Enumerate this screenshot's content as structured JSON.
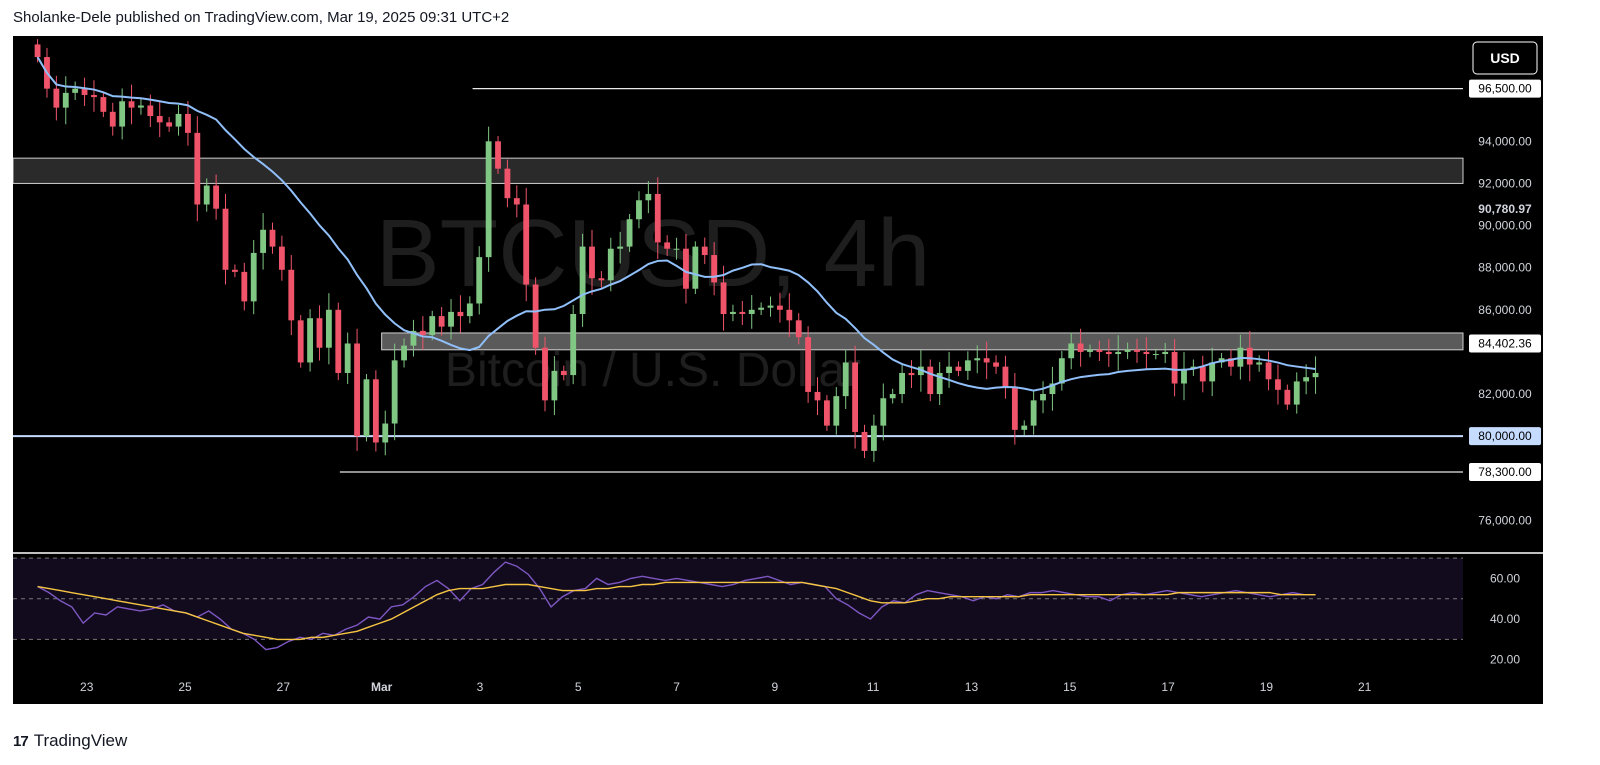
{
  "header": {
    "publisher_line": "Sholanke-Dele published on TradingView.com, Mar 19, 2025 09:31 UTC+2"
  },
  "footer": {
    "logo_text": "17",
    "brand": "TradingView"
  },
  "currency_button": "USD",
  "watermark": {
    "symbol": "BTCUSD, 4h",
    "description": "Bitcoin / U.S. Dollar"
  },
  "colors": {
    "up": "#81c784",
    "down": "#f0546a",
    "ma": "#90bff9",
    "rsi": "#7e57c2",
    "rsi_ma": "#f5c542",
    "background": "#000000"
  },
  "chart_data": [
    {
      "type": "candlestick",
      "symbol": "BTCUSD",
      "timeframe": "4h",
      "y_range": [
        74500,
        99000
      ],
      "y_ticks": [
        "76,000.00",
        "78,300.00",
        "80,000.00",
        "82,000.00",
        "84,402.36",
        "86,000.00",
        "88,000.00",
        "90,000.00",
        "90,780.97",
        "92,000.00",
        "94,000.00",
        "96,500.00"
      ],
      "y_tick_values": [
        76000,
        78300,
        80000,
        82000,
        84402.36,
        86000,
        88000,
        90000,
        90780.97,
        92000,
        94000,
        96500
      ],
      "highlighted_labels": [
        "96,500.00",
        "84,402.36",
        "80,000.00",
        "78,300.00"
      ],
      "x_ticks": [
        "23",
        "25",
        "27",
        "Mar",
        "3",
        "5",
        "7",
        "9",
        "11",
        "13",
        "15",
        "17",
        "19",
        "21"
      ],
      "x_tick_positions": [
        2,
        6,
        10,
        14,
        18,
        22,
        26,
        30,
        34,
        38,
        42,
        46,
        50,
        54
      ],
      "x_range": [
        -1,
        58
      ],
      "horizontal_levels": [
        {
          "price": 96500,
          "from_x": 17.7
        },
        {
          "price": 80000,
          "from_x": -1
        },
        {
          "price": 78300,
          "from_x": 12.3
        }
      ],
      "zones": [
        {
          "from": 92000,
          "to": 93200,
          "from_x": -1
        },
        {
          "from": 84100,
          "to": 84900,
          "from_x": 14.0
        }
      ],
      "closes": [
        98000,
        96500,
        95600,
        96300,
        96500,
        96200,
        96100,
        95400,
        94700,
        95900,
        95600,
        95700,
        95200,
        94900,
        94700,
        95300,
        94400,
        91000,
        91900,
        90800,
        87900,
        87800,
        86400,
        88700,
        89800,
        89000,
        87900,
        85500,
        83500,
        85600,
        84200,
        86000,
        83000,
        84400,
        80000,
        82700,
        79700,
        80600,
        83600,
        84300,
        85000,
        84800,
        85700,
        85200,
        85900,
        85700,
        86300,
        88500,
        94000,
        92700,
        91300,
        91000,
        87200,
        84200,
        81700,
        83100,
        82900,
        85800,
        89000,
        87500,
        87400,
        88900,
        89000,
        90300,
        91200,
        91500,
        89200,
        88900,
        88900,
        87000,
        89000,
        88600,
        87300,
        85800,
        85900,
        85800,
        86000,
        86100,
        86200,
        86000,
        85500,
        84700,
        82100,
        81700,
        80500,
        81900,
        83500,
        80200,
        79300,
        80500,
        81800,
        82000,
        83000,
        82900,
        83300,
        82000,
        83000,
        83300,
        83100,
        83600,
        83700,
        83500,
        83300,
        82300,
        80300,
        80500,
        81700,
        82000,
        82500,
        83700,
        84400,
        84000,
        84100,
        84000,
        83900,
        84000,
        84100,
        84000,
        83900,
        83900,
        84000,
        82500,
        83200,
        83300,
        82600,
        83500,
        83700,
        83300,
        84200,
        83400,
        83500,
        82700,
        82200,
        81500,
        82600,
        82800,
        83000
      ]
    },
    {
      "type": "line",
      "name": "RSI",
      "y_range": [
        12,
        72
      ],
      "y_ticks": [
        "20.00",
        "40.00",
        "60.00"
      ],
      "y_tick_values": [
        20,
        40,
        60
      ],
      "bands": [
        30,
        50,
        70
      ],
      "values": [
        56,
        53,
        49,
        46,
        38,
        43,
        42,
        46,
        45,
        44,
        45,
        47,
        44,
        43,
        41,
        44,
        40,
        35,
        33,
        30,
        25,
        26,
        29,
        31,
        30,
        33,
        32,
        35,
        37,
        41,
        40,
        46,
        47,
        51,
        56,
        59,
        55,
        49,
        55,
        57,
        63,
        68,
        66,
        62,
        55,
        46,
        51,
        54,
        55,
        60,
        57,
        58,
        60,
        61,
        60,
        59,
        60,
        59,
        58,
        57,
        56,
        57,
        59,
        60,
        61,
        59,
        57,
        58,
        57,
        56,
        50,
        47,
        43,
        40,
        46,
        49,
        48,
        52,
        54,
        53,
        52,
        51,
        49,
        51,
        50,
        52,
        51,
        53,
        53,
        54,
        53,
        52,
        51,
        51,
        49,
        52,
        53,
        52,
        53,
        54,
        53,
        52,
        51,
        52,
        53,
        54,
        53,
        52,
        51,
        52,
        53,
        52,
        52
      ],
      "ma_values": [
        56,
        55,
        54,
        53,
        52,
        51,
        50,
        49,
        48,
        47,
        46,
        45,
        44,
        43,
        41,
        39,
        37,
        35,
        33,
        32,
        31,
        30,
        30,
        30,
        31,
        31,
        32,
        33,
        34,
        36,
        38,
        40,
        43,
        46,
        49,
        52,
        54,
        55,
        55,
        55,
        56,
        57,
        57,
        57,
        56,
        55,
        54,
        54,
        54,
        55,
        55,
        56,
        56,
        57,
        57,
        58,
        58,
        58,
        58,
        58,
        58,
        58,
        58,
        58,
        58,
        58,
        58,
        58,
        57,
        56,
        55,
        53,
        51,
        49,
        48,
        48,
        48,
        49,
        50,
        50,
        51,
        51,
        51,
        51,
        51,
        51,
        51,
        52,
        52,
        52,
        52,
        52,
        52,
        52,
        52,
        52,
        52,
        52,
        52,
        52,
        53,
        53,
        53,
        53,
        53,
        53,
        53,
        53,
        53,
        52,
        52,
        52,
        52
      ]
    }
  ]
}
